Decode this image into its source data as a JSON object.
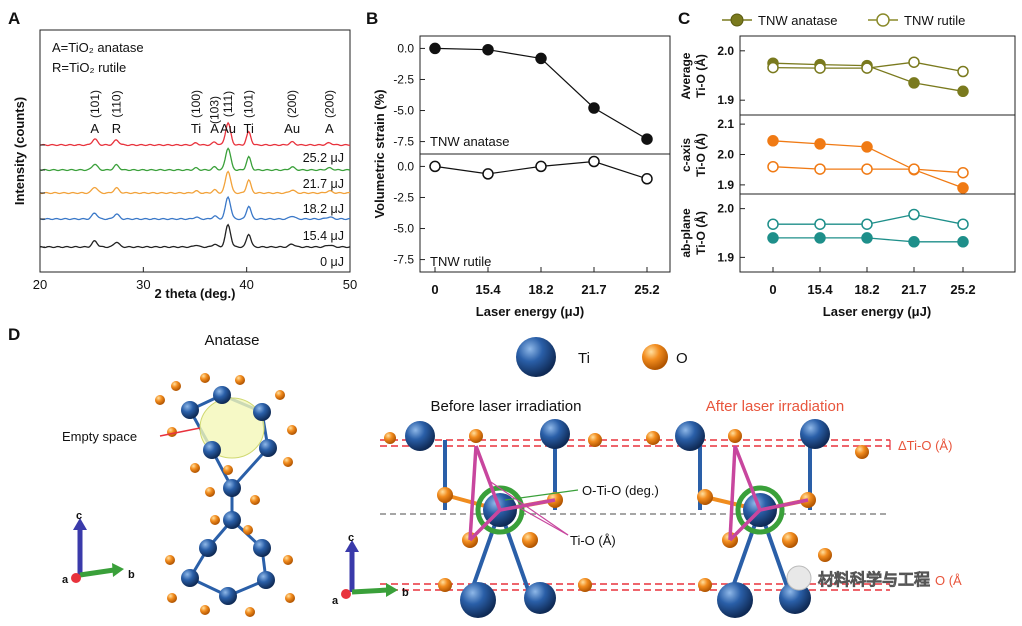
{
  "colors": {
    "anatase_olive": "#7a7a1e",
    "rutile_olive": "#8a8a2a",
    "orange": "#f07a14",
    "teal": "#1e8f8a",
    "red": "#e8323c",
    "green": "#3aa03a",
    "xrd_orange": "#f2a23a",
    "xrd_blue": "#3a78c8",
    "xrd_black": "#222222",
    "ti_blue": "#1f4f8f",
    "o_orange": "#f08c1e",
    "magenta": "#c8469e"
  },
  "panel_labels": {
    "a": "A",
    "b": "B",
    "c": "C",
    "d": "D"
  },
  "chart_data": [
    {
      "id": "A",
      "type": "line",
      "title": "",
      "xlabel": "2 theta (deg.)",
      "ylabel": "Intensity (counts)",
      "xlim": [
        20,
        50
      ],
      "xticks": [
        "20",
        "30",
        "40",
        "50"
      ],
      "legend_text": [
        "A=TiO",
        "2",
        " anatase",
        "R=TiO",
        "2",
        " rutile"
      ],
      "legend_line1": "A=TiO₂ anatase",
      "legend_line2": "R=TiO₂ rutile",
      "peak_labels": [
        {
          "hkl": "(101)",
          "phase": "A",
          "x": 25.3
        },
        {
          "hkl": "(110)",
          "phase": "R",
          "x": 27.4
        },
        {
          "hkl": "(100)",
          "phase": "Ti",
          "x": 35.1
        },
        {
          "hkl": "(103)",
          "phase": "A",
          "x": 36.9
        },
        {
          "hkl": "(111)",
          "phase": "Au",
          "x": 38.2
        },
        {
          "hkl": "(101)",
          "phase": "Ti",
          "x": 40.2
        },
        {
          "hkl": "(200)",
          "phase": "Au",
          "x": 44.4
        },
        {
          "hkl": "(200)",
          "phase": "A",
          "x": 48.0
        }
      ],
      "series": [
        {
          "name": "0 μJ",
          "color": "#222222"
        },
        {
          "name": "15.4 μJ",
          "color": "#3a78c8"
        },
        {
          "name": "18.2 μJ",
          "color": "#f2a23a"
        },
        {
          "name": "21.7 μJ",
          "color": "#3aa03a"
        },
        {
          "name": "25.2 μJ",
          "color": "#e8323c"
        }
      ]
    },
    {
      "id": "B",
      "type": "line",
      "xlabel": "Laser energy (μJ)",
      "ylabel": "Volumetric strain (%)",
      "categories": [
        "0",
        "15.4",
        "18.2",
        "21.7",
        "25.2"
      ],
      "subplots": [
        {
          "label": "TNW anatase",
          "ylim": [
            -8.5,
            1.0
          ],
          "yticks": [
            "0.0",
            "-2.5",
            "-5.0",
            "-7.5"
          ],
          "filled": true,
          "values": [
            0.0,
            -0.1,
            -0.8,
            -4.8,
            -7.3
          ]
        },
        {
          "label": "TNW rutile",
          "ylim": [
            -8.5,
            1.0
          ],
          "yticks": [
            "0.0",
            "-2.5",
            "-5.0",
            "-7.5"
          ],
          "filled": false,
          "values": [
            0.0,
            -0.6,
            0.0,
            0.4,
            -1.0
          ]
        }
      ]
    },
    {
      "id": "C",
      "type": "line",
      "xlabel": "Laser energy (μJ)",
      "categories": [
        "0",
        "15.4",
        "18.2",
        "21.7",
        "25.2"
      ],
      "legend": [
        {
          "name": "TNW anatase",
          "filled": true
        },
        {
          "name": "TNW rutile",
          "filled": false
        }
      ],
      "subplots": [
        {
          "ylabel1": "Average",
          "ylabel2": "Ti-O (Å)",
          "color": "#7a7a1e",
          "ylim": [
            1.87,
            2.03
          ],
          "yticks": [
            "2.0",
            "1.9"
          ],
          "ytick_values": [
            2.0,
            1.9
          ],
          "series": [
            {
              "name": "TNW anatase",
              "filled": true,
              "values": [
                1.975,
                1.972,
                1.97,
                1.935,
                1.918
              ]
            },
            {
              "name": "TNW rutile",
              "filled": false,
              "values": [
                1.966,
                1.965,
                1.965,
                1.977,
                1.958
              ]
            }
          ]
        },
        {
          "ylabel1": "c-axis",
          "ylabel2": "Ti-O (Å)",
          "color": "#f07a14",
          "ylim": [
            1.87,
            2.13
          ],
          "yticks": [
            "2.1",
            "2.0",
            "1.9"
          ],
          "ytick_values": [
            2.1,
            2.0,
            1.9
          ],
          "series": [
            {
              "name": "TNW anatase",
              "filled": true,
              "values": [
                2.045,
                2.035,
                2.025,
                1.95,
                1.89
              ]
            },
            {
              "name": "TNW rutile",
              "filled": false,
              "values": [
                1.96,
                1.952,
                1.952,
                1.952,
                1.94
              ]
            }
          ]
        },
        {
          "ylabel1": "ab-plane",
          "ylabel2": "Ti-O (Å)",
          "color": "#1e8f8a",
          "ylim": [
            1.87,
            2.03
          ],
          "yticks": [
            "2.0",
            "1.9"
          ],
          "ytick_values": [
            2.0,
            1.9
          ],
          "series": [
            {
              "name": "TNW anatase",
              "filled": true,
              "values": [
                1.94,
                1.94,
                1.94,
                1.932,
                1.932
              ]
            },
            {
              "name": "TNW rutile",
              "filled": false,
              "values": [
                1.968,
                1.968,
                1.968,
                1.988,
                1.968
              ]
            }
          ]
        }
      ]
    }
  ],
  "panel_d": {
    "anatase_title": "Anatase",
    "empty_space": "Empty space",
    "ti_label": "Ti",
    "o_label": "O",
    "before": "Before laser irradiation",
    "after": "After laser irradiation",
    "delta": "ΔTi-O (Å)",
    "oto": "O-Ti-O (deg.)",
    "tio": "Ti-O (Å)",
    "axis_c": "c",
    "axis_a": "a",
    "axis_b": "b",
    "watermark": "材料科学与工程",
    "watermark_tail": "O (Å"
  }
}
